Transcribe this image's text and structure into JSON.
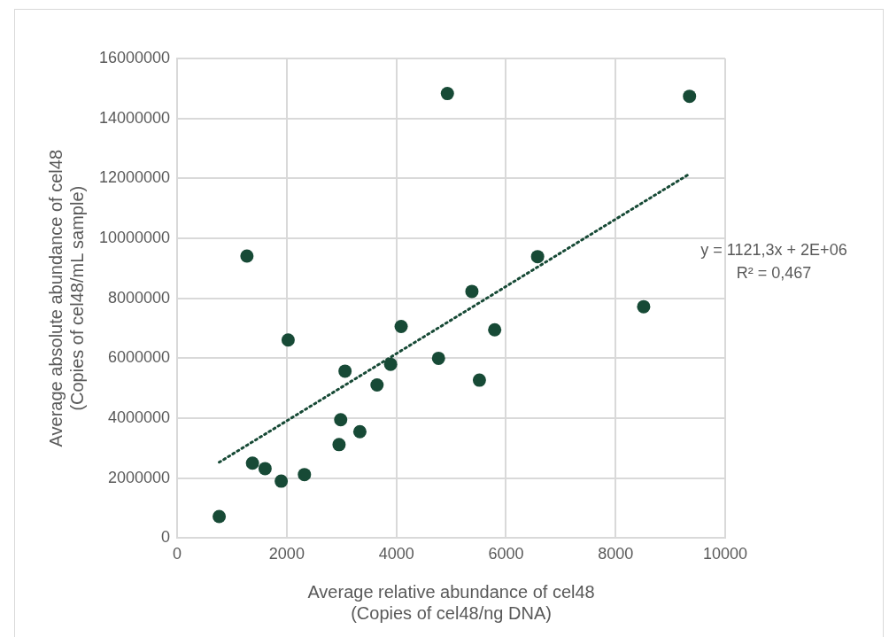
{
  "chart_data": {
    "type": "scatter",
    "xlabel": "Average relative abundance of cel48\n(Copies of cel48/ng DNA)",
    "ylabel": "Average absolute abundance of cel48\n(Copies of cel48/mL sample)",
    "annotations": [
      "y = 1121,3x + 2E+06",
      "R² = 0,467"
    ],
    "series": [
      {
        "type": "scatter",
        "color": "#174a36",
        "marker": "circle",
        "x": [
          767,
          1273,
          1374,
          1604,
          1899,
          2025,
          2322,
          2954,
          2984,
          3063,
          3334,
          3647,
          3895,
          4087,
          4769,
          4931,
          5378,
          5515,
          5794,
          6577,
          8512,
          9349
        ],
        "values": [
          720000,
          9410000,
          2500000,
          2320000,
          1900000,
          6610000,
          2120000,
          3120000,
          3950000,
          5570000,
          3550000,
          5110000,
          5800000,
          7060000,
          6000000,
          14830000,
          8230000,
          5270000,
          6950000,
          9390000,
          7720000,
          14740000
        ]
      },
      {
        "type": "line",
        "color": "#174a36",
        "marker": "none",
        "line_style": "dotted",
        "x": [
          767,
          9349
        ],
        "values": [
          2530000,
          12150000
        ]
      }
    ],
    "xlim": [
      0,
      10000
    ],
    "xticks": [
      0,
      2000,
      4000,
      6000,
      8000,
      10000
    ],
    "ylim": [
      0,
      16000000
    ],
    "yticks": [
      0,
      2000000,
      4000000,
      6000000,
      8000000,
      10000000,
      12000000,
      14000000,
      16000000
    ],
    "grid": true
  }
}
